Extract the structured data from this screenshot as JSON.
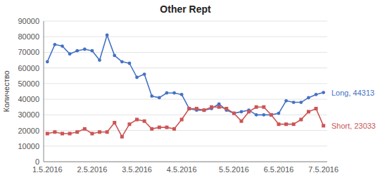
{
  "chart_data": {
    "type": "line",
    "title": "Other Rept",
    "y_label": "Количество",
    "categories": [
      "1.5.2016",
      null,
      null,
      null,
      null,
      null,
      "2.5.2016",
      null,
      null,
      null,
      null,
      null,
      "3.5.2016",
      null,
      null,
      null,
      null,
      null,
      "4.5.2016",
      null,
      null,
      null,
      null,
      null,
      null,
      "5.5.2016",
      null,
      null,
      null,
      null,
      null,
      "6.5.2016",
      null,
      null,
      null,
      null,
      null,
      "7.5.2016"
    ],
    "series": [
      {
        "name": "Long, 44313",
        "color": "#4472C4",
        "marker": "circle",
        "values": [
          64000,
          75000,
          74000,
          69000,
          71000,
          72000,
          71000,
          65000,
          81000,
          68000,
          64000,
          63000,
          54000,
          56000,
          42000,
          41000,
          44000,
          44000,
          43000,
          34000,
          33000,
          33000,
          34000,
          37000,
          33000,
          31000,
          32000,
          33000,
          30000,
          30000,
          30000,
          31000,
          39000,
          38000,
          38000,
          41000,
          43000,
          44313
        ]
      },
      {
        "name": "Short, 23033",
        "color": "#CC5555",
        "marker": "square",
        "values": [
          18000,
          19000,
          18000,
          18000,
          19000,
          21000,
          18000,
          19000,
          19000,
          25000,
          16000,
          24000,
          27000,
          26000,
          21000,
          22000,
          22000,
          21000,
          27000,
          34000,
          34000,
          33000,
          35000,
          35000,
          34000,
          31000,
          26000,
          32000,
          35000,
          35000,
          30000,
          24000,
          24000,
          24000,
          27000,
          32000,
          34000,
          23033
        ]
      }
    ],
    "ylim": [
      0,
      90000
    ],
    "yticks": [
      0,
      10000,
      20000,
      30000,
      40000,
      50000,
      60000,
      70000,
      80000,
      90000
    ],
    "grid": true
  }
}
